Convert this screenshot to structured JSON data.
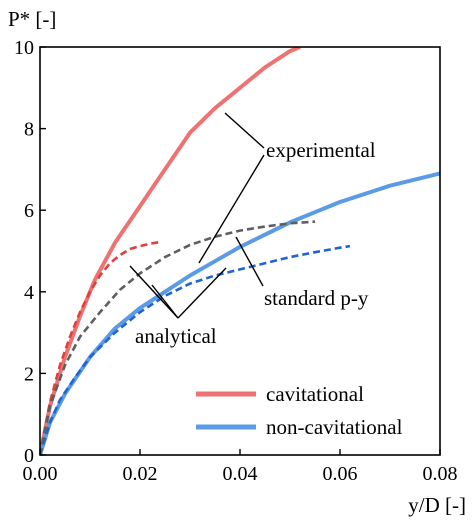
{
  "chart_data": {
    "type": "line",
    "xlabel": "y/D [-]",
    "ylabel": "P* [-]",
    "xlim": [
      0,
      0.08
    ],
    "ylim": [
      0,
      10
    ],
    "x_ticks": [
      "0.00",
      "0.02",
      "0.04",
      "0.06",
      "0.08"
    ],
    "x_tick_values": [
      0,
      0.02,
      0.04,
      0.06,
      0.08
    ],
    "y_ticks": [
      "0",
      "2",
      "4",
      "6",
      "8",
      "10"
    ],
    "y_tick_values": [
      0,
      2,
      4,
      6,
      8,
      10
    ],
    "grid": false,
    "legend_position": "bottom-right",
    "series": [
      {
        "name": "cavitational",
        "group": "experimental",
        "color": "#ef7272",
        "style": "solid",
        "x": [
          0,
          0.002,
          0.005,
          0.008,
          0.011,
          0.015,
          0.02,
          0.025,
          0.03,
          0.035,
          0.04,
          0.045,
          0.05,
          0.052
        ],
        "y": [
          0,
          1.2,
          2.4,
          3.4,
          4.3,
          5.2,
          6.1,
          7.0,
          7.9,
          8.5,
          9.0,
          9.5,
          9.9,
          10.0
        ]
      },
      {
        "name": "non-cavitational",
        "group": "experimental",
        "color": "#5b9be6",
        "style": "solid",
        "x": [
          0,
          0.002,
          0.005,
          0.01,
          0.015,
          0.02,
          0.025,
          0.03,
          0.035,
          0.04,
          0.045,
          0.05,
          0.055,
          0.06,
          0.065,
          0.07,
          0.075,
          0.08
        ],
        "y": [
          0,
          0.8,
          1.5,
          2.4,
          3.1,
          3.6,
          4.0,
          4.4,
          4.75,
          5.1,
          5.4,
          5.7,
          5.95,
          6.2,
          6.4,
          6.6,
          6.75,
          6.9
        ]
      },
      {
        "name": "cavitational",
        "group": "analytical",
        "color": "#e0403c",
        "style": "dashed",
        "x": [
          0,
          0.002,
          0.004,
          0.006,
          0.008,
          0.01,
          0.012,
          0.014,
          0.016,
          0.018,
          0.02,
          0.022,
          0.024
        ],
        "y": [
          0,
          1.3,
          2.2,
          2.9,
          3.5,
          4.0,
          4.4,
          4.7,
          4.9,
          5.05,
          5.12,
          5.18,
          5.22
        ]
      },
      {
        "name": "non-cavitational",
        "group": "analytical",
        "color": "#1f63d6",
        "style": "dashed",
        "x": [
          0,
          0.002,
          0.004,
          0.007,
          0.01,
          0.015,
          0.02,
          0.025,
          0.03,
          0.035,
          0.04,
          0.045,
          0.05,
          0.055,
          0.06,
          0.062
        ],
        "y": [
          0,
          0.8,
          1.35,
          1.9,
          2.4,
          3.0,
          3.5,
          3.9,
          4.2,
          4.4,
          4.55,
          4.7,
          4.85,
          4.97,
          5.08,
          5.12
        ]
      },
      {
        "name": "standard p-y",
        "group": "standard",
        "color": "#5f5f5f",
        "style": "dashed",
        "x": [
          0,
          0.002,
          0.005,
          0.008,
          0.012,
          0.016,
          0.02,
          0.025,
          0.03,
          0.035,
          0.04,
          0.045,
          0.05,
          0.055
        ],
        "y": [
          0,
          1.2,
          2.2,
          2.9,
          3.5,
          4.05,
          4.45,
          4.85,
          5.15,
          5.35,
          5.5,
          5.6,
          5.68,
          5.72
        ]
      }
    ],
    "annotations": [
      {
        "text": "experimental"
      },
      {
        "text": "standard p-y"
      },
      {
        "text": "analytical"
      }
    ],
    "legend": [
      {
        "label": "cavitational",
        "color": "#ef7272"
      },
      {
        "label": "non-cavitational",
        "color": "#5b9be6"
      }
    ]
  }
}
